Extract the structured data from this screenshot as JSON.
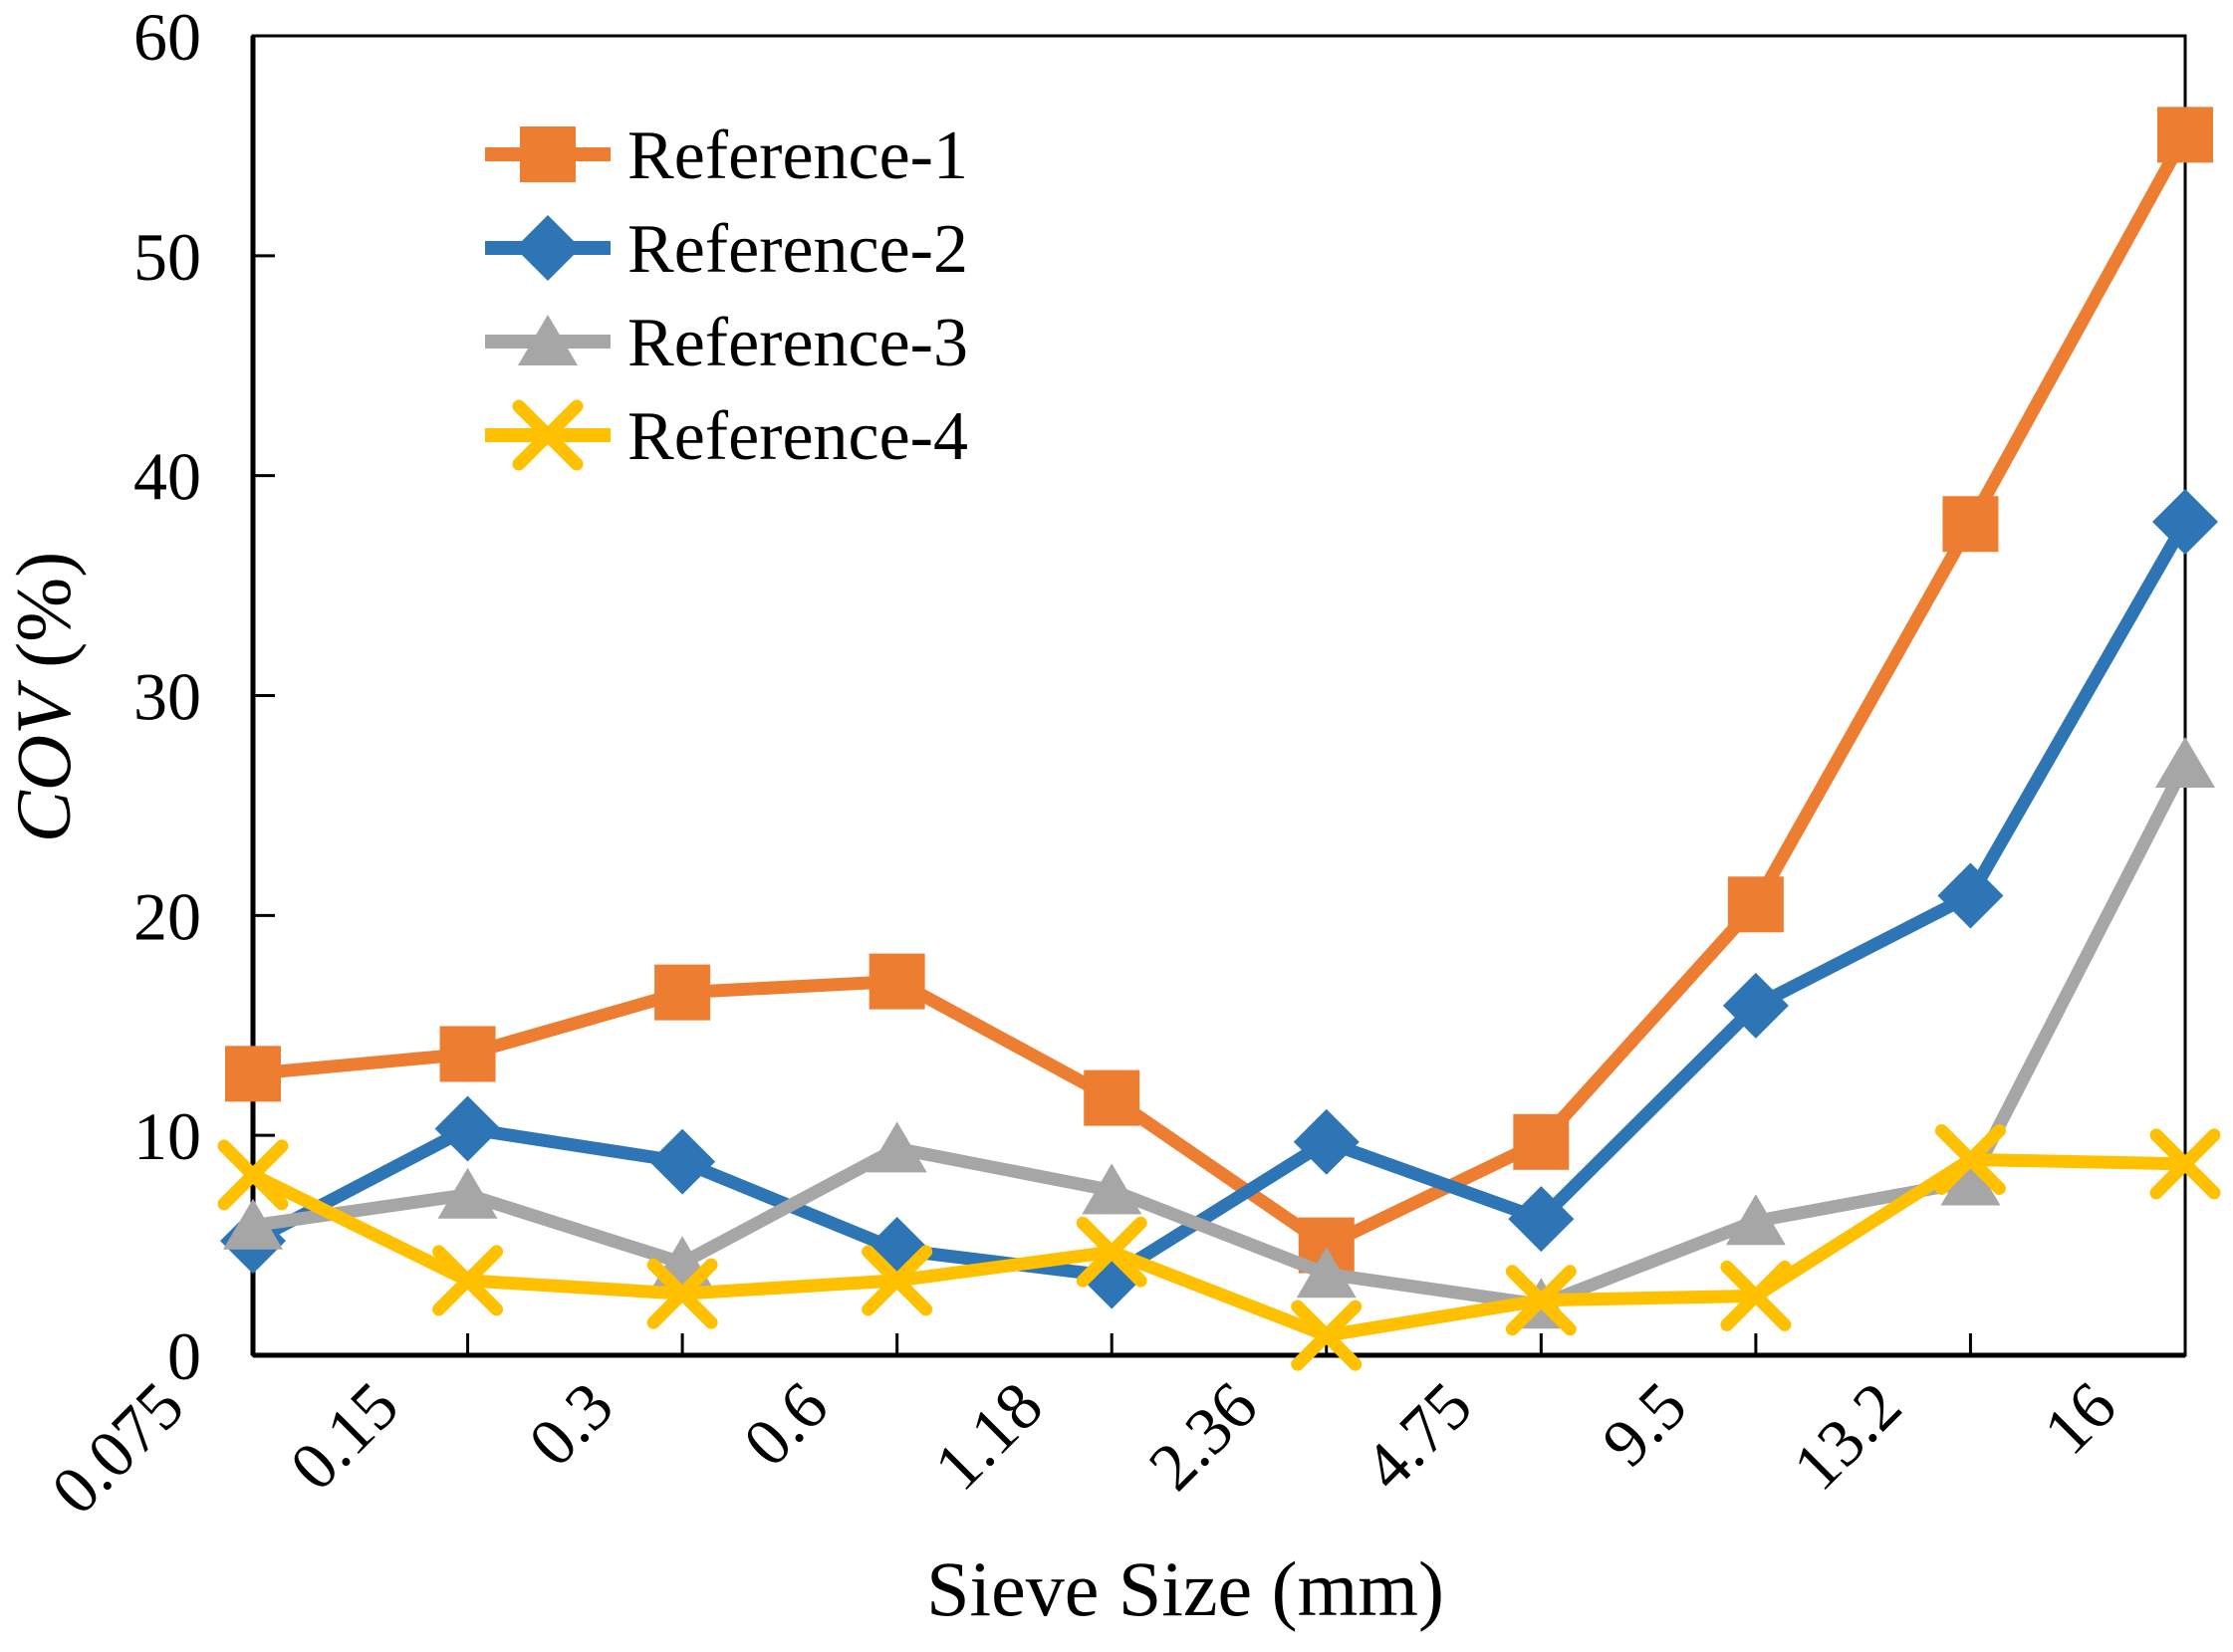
{
  "chart_data": {
    "type": "line",
    "title": "",
    "xlabel": "Sieve Size (mm)",
    "ylabel": "COV (%)",
    "ylabel_italic": "COV",
    "ylabel_suffix": " (%)",
    "categories": [
      "0.075",
      "0.15",
      "0.3",
      "0.6",
      "1.18",
      "2.36",
      "4.75",
      "9.5",
      "13.2",
      "16"
    ],
    "ylim": [
      0,
      60
    ],
    "yticks": [
      0,
      10,
      20,
      30,
      40,
      50,
      60
    ],
    "grid": false,
    "legend_position": "inside-upper-left",
    "axis_color": "#000000",
    "series": [
      {
        "name": "Reference-1",
        "marker": "square",
        "color": "#ED7D31",
        "values": [
          12.8,
          13.7,
          16.5,
          17.0,
          11.7,
          5.0,
          9.7,
          20.5,
          37.8,
          55.5
        ]
      },
      {
        "name": "Reference-2",
        "marker": "diamond",
        "color": "#2E75B6",
        "values": [
          5.2,
          10.3,
          8.8,
          4.8,
          3.6,
          9.7,
          6.2,
          15.9,
          20.9,
          37.9
        ]
      },
      {
        "name": "Reference-3",
        "marker": "triangle",
        "color": "#A6A6A6",
        "values": [
          5.9,
          7.3,
          4.2,
          9.4,
          7.5,
          3.7,
          2.3,
          6.1,
          7.9,
          26.9
        ]
      },
      {
        "name": "Reference-4",
        "marker": "x",
        "color": "#FFC000",
        "values": [
          8.2,
          3.4,
          2.8,
          3.4,
          4.7,
          0.9,
          2.5,
          2.7,
          8.9,
          8.7
        ]
      }
    ]
  }
}
